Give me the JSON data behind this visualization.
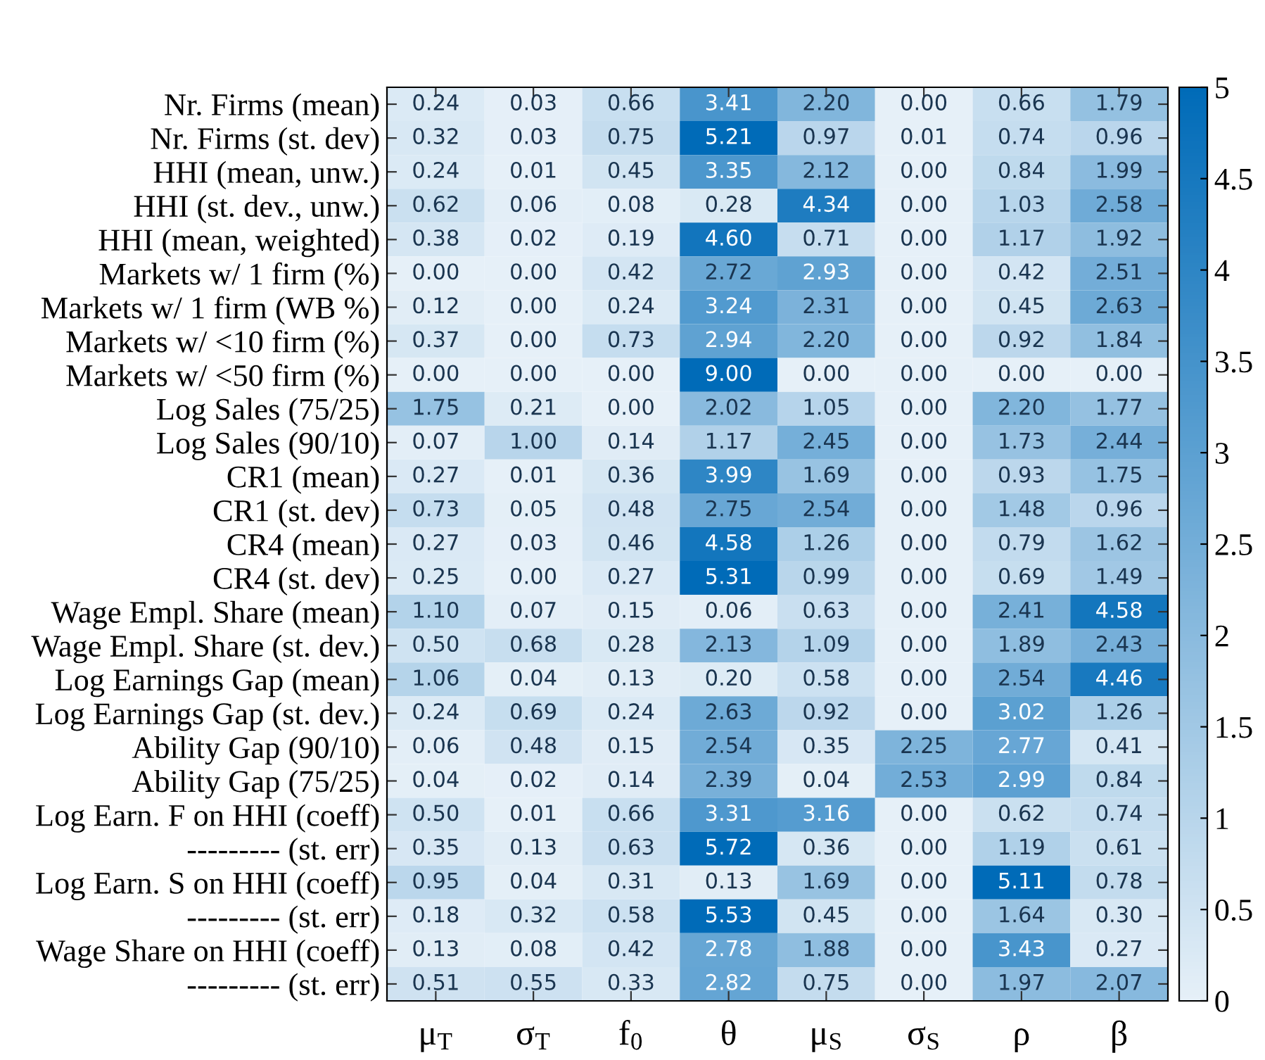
{
  "chart_data": {
    "type": "heatmap",
    "categories": [
      "μ$_{T}$",
      "σ$_{T}$",
      "f$_{0}$",
      "θ",
      "μ$_{S}$",
      "σ$_{S}$",
      "ρ",
      "β"
    ],
    "y_categories": [
      "Nr. Firms (mean)",
      "Nr. Firms (st. dev)",
      "HHI (mean, unw.)",
      "HHI (st. dev., unw.)",
      "HHI (mean, weighted)",
      "Markets w/ 1 firm (%)",
      "Markets w/ 1 firm (WB %)",
      "Markets w/ <10 firm (%)",
      "Markets w/ <50 firm (%)",
      "Log Sales (75/25)",
      "Log Sales (90/10)",
      "CR1 (mean)",
      "CR1 (st. dev)",
      "CR4 (mean)",
      "CR4 (st. dev)",
      "Wage Empl. Share (mean)",
      "Wage Empl. Share (st. dev.)",
      "Log Earnings Gap (mean)",
      "Log Earnings Gap (st. dev.)",
      "Ability Gap (90/10)",
      "Ability Gap (75/25)",
      "Log Earn. F on HHI (coeff)",
      "--------- (st. err)",
      "Log Earn. S on HHI (coeff)",
      "--------- (st. err)",
      "Wage Share on HHI (coeff)",
      "--------- (st. err)"
    ],
    "cells": [
      [
        0.24,
        0.03,
        0.66,
        3.41,
        2.2,
        0.0,
        0.66,
        1.79
      ],
      [
        0.32,
        0.03,
        0.75,
        5.21,
        0.97,
        0.01,
        0.74,
        0.96
      ],
      [
        0.24,
        0.01,
        0.45,
        3.35,
        2.12,
        0.0,
        0.84,
        1.99
      ],
      [
        0.62,
        0.06,
        0.08,
        0.28,
        4.34,
        0.0,
        1.03,
        2.58
      ],
      [
        0.38,
        0.02,
        0.19,
        4.6,
        0.71,
        0.0,
        1.17,
        1.92
      ],
      [
        0.0,
        0.0,
        0.42,
        2.72,
        2.93,
        0.0,
        0.42,
        2.51
      ],
      [
        0.12,
        0.0,
        0.24,
        3.24,
        2.31,
        0.0,
        0.45,
        2.63
      ],
      [
        0.37,
        0.0,
        0.73,
        2.94,
        2.2,
        0.0,
        0.92,
        1.84
      ],
      [
        0.0,
        0.0,
        0.0,
        9.0,
        0.0,
        0.0,
        0.0,
        0.0
      ],
      [
        1.75,
        0.21,
        0.0,
        2.02,
        1.05,
        0.0,
        2.2,
        1.77
      ],
      [
        0.07,
        1.0,
        0.14,
        1.17,
        2.45,
        0.0,
        1.73,
        2.44
      ],
      [
        0.27,
        0.01,
        0.36,
        3.99,
        1.69,
        0.0,
        0.93,
        1.75
      ],
      [
        0.73,
        0.05,
        0.48,
        2.75,
        2.54,
        0.0,
        1.48,
        0.96
      ],
      [
        0.27,
        0.03,
        0.46,
        4.58,
        1.26,
        0.0,
        0.79,
        1.62
      ],
      [
        0.25,
        0.0,
        0.27,
        5.31,
        0.99,
        0.0,
        0.69,
        1.49
      ],
      [
        1.1,
        0.07,
        0.15,
        0.06,
        0.63,
        0.0,
        2.41,
        4.58
      ],
      [
        0.5,
        0.68,
        0.28,
        2.13,
        1.09,
        0.0,
        1.89,
        2.43
      ],
      [
        1.06,
        0.04,
        0.13,
        0.2,
        0.58,
        0.0,
        2.54,
        4.46
      ],
      [
        0.24,
        0.69,
        0.24,
        2.63,
        0.92,
        0.0,
        3.02,
        1.26
      ],
      [
        0.06,
        0.48,
        0.15,
        2.54,
        0.35,
        2.25,
        2.77,
        0.41
      ],
      [
        0.04,
        0.02,
        0.14,
        2.39,
        0.04,
        2.53,
        2.99,
        0.84
      ],
      [
        0.5,
        0.01,
        0.66,
        3.31,
        3.16,
        0.0,
        0.62,
        0.74
      ],
      [
        0.35,
        0.13,
        0.63,
        5.72,
        0.36,
        0.0,
        1.19,
        0.61
      ],
      [
        0.95,
        0.04,
        0.31,
        0.13,
        1.69,
        0.0,
        5.11,
        0.78
      ],
      [
        0.18,
        0.32,
        0.58,
        5.53,
        0.45,
        0.0,
        1.64,
        0.3
      ],
      [
        0.13,
        0.08,
        0.42,
        2.78,
        1.88,
        0.0,
        3.43,
        0.27
      ],
      [
        0.51,
        0.55,
        0.33,
        2.82,
        0.75,
        0.0,
        1.97,
        2.07
      ]
    ],
    "cell_labels": [
      [
        "0.24",
        "0.03",
        "0.66",
        "3.41",
        "2.20",
        "0.00",
        "0.66",
        "1.79"
      ],
      [
        "0.32",
        "0.03",
        "0.75",
        "5.21",
        "0.97",
        "0.01",
        "0.74",
        "0.96"
      ],
      [
        "0.24",
        "0.01",
        "0.45",
        "3.35",
        "2.12",
        "0.00",
        "0.84",
        "1.99"
      ],
      [
        "0.62",
        "0.06",
        "0.08",
        "0.28",
        "4.34",
        "0.00",
        "1.03",
        "2.58"
      ],
      [
        "0.38",
        "0.02",
        "0.19",
        "4.60",
        "0.71",
        "0.00",
        "1.17",
        "1.92"
      ],
      [
        "0.00",
        "0.00",
        "0.42",
        "2.72",
        "2.93",
        "0.00",
        "0.42",
        "2.51"
      ],
      [
        "0.12",
        "0.00",
        "0.24",
        "3.24",
        "2.31",
        "0.00",
        "0.45",
        "2.63"
      ],
      [
        "0.37",
        "0.00",
        "0.73",
        "2.94",
        "2.20",
        "0.00",
        "0.92",
        "1.84"
      ],
      [
        "0.00",
        "0.00",
        "0.00",
        "9.00",
        "0.00",
        "0.00",
        "0.00",
        "0.00"
      ],
      [
        "1.75",
        "0.21",
        "0.00",
        "2.02",
        "1.05",
        "0.00",
        "2.20",
        "1.77"
      ],
      [
        "0.07",
        "1.00",
        "0.14",
        "1.17",
        "2.45",
        "0.00",
        "1.73",
        "2.44"
      ],
      [
        "0.27",
        "0.01",
        "0.36",
        "3.99",
        "1.69",
        "0.00",
        "0.93",
        "1.75"
      ],
      [
        "0.73",
        "0.05",
        "0.48",
        "2.75",
        "2.54",
        "0.00",
        "1.48",
        "0.96"
      ],
      [
        "0.27",
        "0.03",
        "0.46",
        "4.58",
        "1.26",
        "0.00",
        "0.79",
        "1.62"
      ],
      [
        "0.25",
        "0.00",
        "0.27",
        "5.31",
        "0.99",
        "0.00",
        "0.69",
        "1.49"
      ],
      [
        "1.10",
        "0.07",
        "0.15",
        "0.06",
        "0.63",
        "0.00",
        "2.41",
        "4.58"
      ],
      [
        "0.50",
        "0.68",
        "0.28",
        "2.13",
        "1.09",
        "0.00",
        "1.89",
        "2.43"
      ],
      [
        "1.06",
        "0.04",
        "0.13",
        "0.20",
        "0.58",
        "0.00",
        "2.54",
        "4.46"
      ],
      [
        "0.24",
        "0.69",
        "0.24",
        "2.63",
        "0.92",
        "0.00",
        "3.02",
        "1.26"
      ],
      [
        "0.06",
        "0.48",
        "0.15",
        "2.54",
        "0.35",
        "2.25",
        "2.77",
        "0.41"
      ],
      [
        "0.04",
        "0.02",
        "0.14",
        "2.39",
        "0.04",
        "2.53",
        "2.99",
        "0.84"
      ],
      [
        "0.50",
        "0.01",
        "0.66",
        "3.31",
        "3.16",
        "0.00",
        "0.62",
        "0.74"
      ],
      [
        "0.35",
        "0.13",
        "0.63",
        "5.72",
        "0.36",
        "0.00",
        "1.19",
        "0.61"
      ],
      [
        "0.95",
        "0.04",
        "0.31",
        "0.13",
        "1.69",
        "0.00",
        "5.11",
        "0.78"
      ],
      [
        "0.18",
        "0.32",
        "0.58",
        "5.53",
        "0.45",
        "0.00",
        "1.64",
        "0.30"
      ],
      [
        "0.13",
        "0.08",
        "0.42",
        "2.78",
        "1.88",
        "0.00",
        "3.43",
        "0.27"
      ],
      [
        "0.51",
        "0.55",
        "0.33",
        "2.82",
        "0.75",
        "0.00",
        "1.97",
        "2.07"
      ]
    ],
    "colors": [
      "#e6f0f8",
      "#006bb8"
    ],
    "clim": [
      0,
      5
    ],
    "cticks": [
      0,
      0.5,
      1,
      1.5,
      2,
      2.5,
      3,
      3.5,
      4,
      4.5,
      5
    ]
  }
}
